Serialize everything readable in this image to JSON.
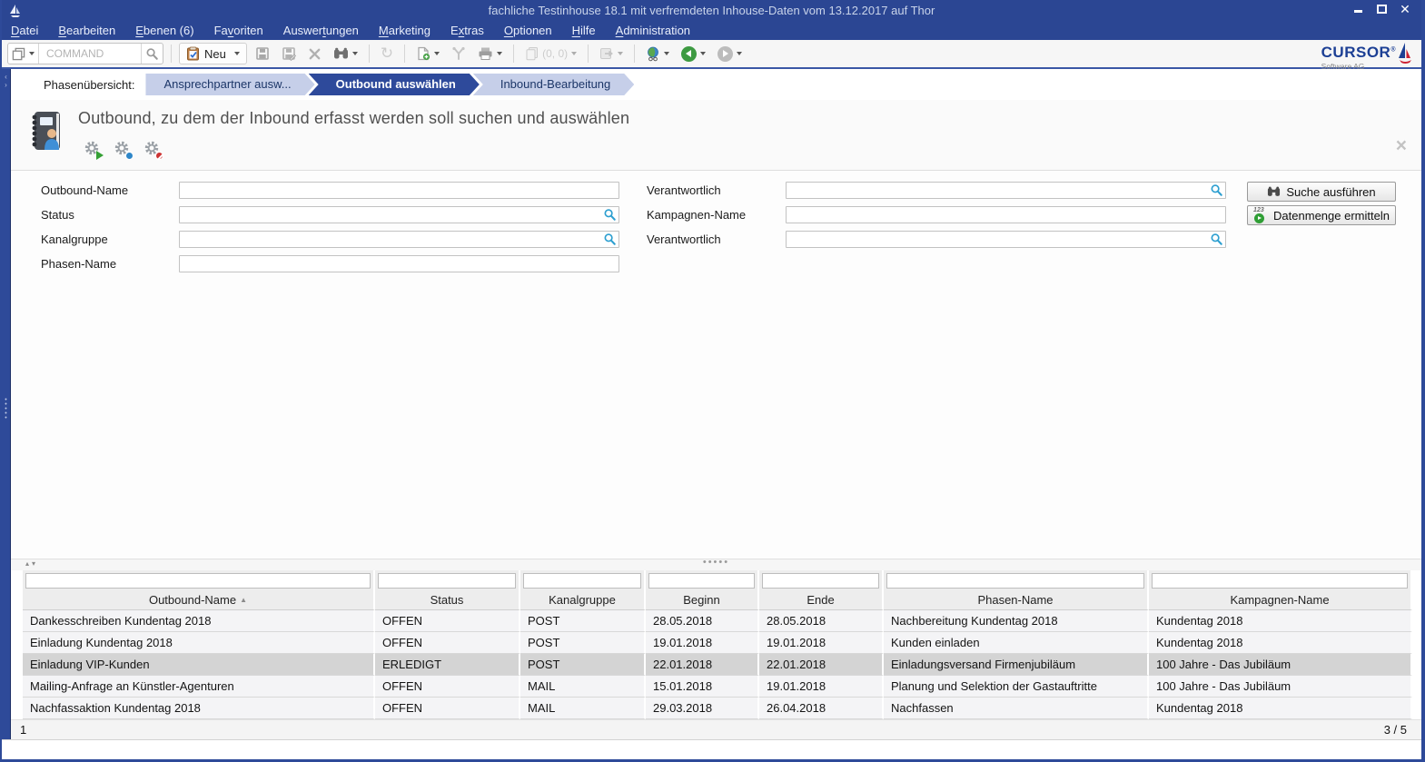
{
  "window": {
    "title": "fachliche Testinhouse 18.1 mit verfremdeten Inhouse-Daten vom 13.12.2017 auf Thor"
  },
  "menubar": {
    "items": [
      {
        "label": "Datei",
        "ak": 0
      },
      {
        "label": "Bearbeiten",
        "ak": 0
      },
      {
        "label": "Ebenen (6)",
        "ak": 0
      },
      {
        "label": "Favoriten",
        "ak": 2
      },
      {
        "label": "Auswertungen",
        "ak": 6
      },
      {
        "label": "Marketing",
        "ak": 0
      },
      {
        "label": "Extras",
        "ak": 1
      },
      {
        "label": "Optionen",
        "ak": 0
      },
      {
        "label": "Hilfe",
        "ak": 0
      },
      {
        "label": "Administration",
        "ak": 0
      }
    ]
  },
  "toolbar": {
    "command_placeholder": "COMMAND",
    "neu_label": "Neu",
    "pages_label": "(0, 0)",
    "logo_brand": "CURSOR",
    "logo_reg": "®",
    "logo_sub": "Software AG"
  },
  "phasebar": {
    "label": "Phasenübersicht:",
    "steps": [
      {
        "label": "Ansprechpartner ausw...",
        "active": false
      },
      {
        "label": "Outbound auswählen",
        "active": true
      },
      {
        "label": "Inbound-Bearbeitung",
        "active": false
      }
    ]
  },
  "header": {
    "title": "Outbound, zu dem der Inbound erfasst werden soll suchen und auswählen"
  },
  "search_form": {
    "left_fields": [
      {
        "label": "Outbound-Name",
        "value": "",
        "lookup": false
      },
      {
        "label": "Status",
        "value": "",
        "lookup": true
      },
      {
        "label": "Kanalgruppe",
        "value": "",
        "lookup": true
      },
      {
        "label": "Phasen-Name",
        "value": "",
        "lookup": false
      }
    ],
    "right_fields": [
      {
        "label": "Verantwortlich",
        "value": "",
        "lookup": true
      },
      {
        "label": "Kampagnen-Name",
        "value": "",
        "lookup": false
      },
      {
        "label": "Verantwortlich",
        "value": "",
        "lookup": true
      }
    ],
    "buttons": [
      {
        "label": "Suche ausführen"
      },
      {
        "label": "Datenmenge ermitteln"
      }
    ]
  },
  "table": {
    "columns": [
      "Outbound-Name",
      "Status",
      "Kanalgruppe",
      "Beginn",
      "Ende",
      "Phasen-Name",
      "Kampagnen-Name"
    ],
    "sort_column": "Outbound-Name",
    "filter_values": [
      "",
      "",
      "",
      "",
      "",
      "",
      ""
    ],
    "rows": [
      [
        "Dankesschreiben Kundentag 2018",
        "OFFEN",
        "POST",
        "28.05.2018",
        "28.05.2018",
        "Nachbereitung Kundentag 2018",
        "Kundentag 2018"
      ],
      [
        "Einladung Kundentag 2018",
        "OFFEN",
        "POST",
        "19.01.2018",
        "19.01.2018",
        "Kunden einladen",
        "Kundentag 2018"
      ],
      [
        "Einladung VIP-Kunden",
        "ERLEDIGT",
        "POST",
        "22.01.2018",
        "22.01.2018",
        "Einladungsversand Firmenjubiläum",
        "100 Jahre - Das Jubiläum"
      ],
      [
        "Mailing-Anfrage an Künstler-Agenturen",
        "OFFEN",
        "MAIL",
        "15.01.2018",
        "19.01.2018",
        "Planung und Selektion der Gastauftritte",
        "100 Jahre - Das Jubiläum"
      ],
      [
        "Nachfassaktion Kundentag 2018",
        "OFFEN",
        "MAIL",
        "29.03.2018",
        "26.04.2018",
        "Nachfassen",
        "Kundentag 2018"
      ]
    ],
    "selected_row_index": 2,
    "pager_left": "1",
    "pager_right": "3 / 5"
  },
  "icons": {
    "sort_asc": "▲",
    "splitter_dots": "•••••",
    "splitter_arrows": "▴▾",
    "strip_arrow_up": "‹",
    "strip_arrow_down": "›",
    "panel_close": "×",
    "window_close": "✕",
    "refresh": "↻"
  },
  "colors": {
    "titlebar_blue": "#2b4693",
    "accent_blue": "#2e4a9b",
    "phase_inactive": "#c6cfe9",
    "lookup_blue": "#2d9fd0",
    "selected_row": "#d4d4d4",
    "back_green": "#3d9a41"
  }
}
